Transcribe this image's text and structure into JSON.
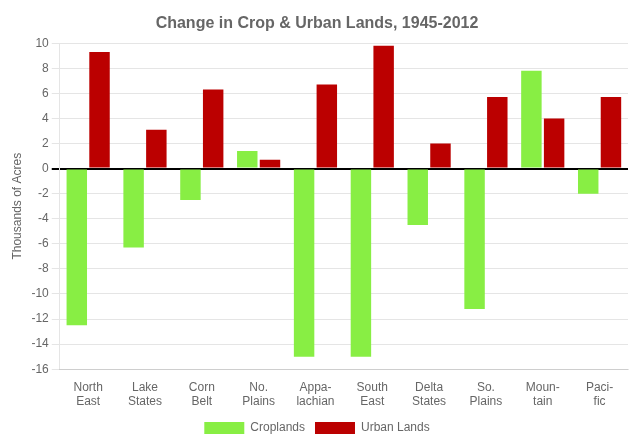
{
  "chart_data": {
    "type": "bar",
    "title": "Change in Crop & Urban Lands, 1945-2012",
    "ylabel": "Thousands of Acres",
    "categories": [
      "North\nEast",
      "Lake\nStates",
      "Corn\nBelt",
      "No.\nPlains",
      "Appa-\nlachian",
      "South\nEast",
      "Delta\nStates",
      "So.\nPlains",
      "Moun-\ntain",
      "Paci-\nfic"
    ],
    "series": [
      {
        "name": "Croplands",
        "color": "#88EE44",
        "values": [
          -12.5,
          -6.3,
          -2.5,
          1.4,
          -15.0,
          -15.0,
          -4.5,
          -11.2,
          7.8,
          -2.0
        ]
      },
      {
        "name": "Urban Lands",
        "color": "#BB0000",
        "values": [
          9.3,
          3.1,
          6.3,
          0.7,
          6.7,
          9.8,
          2.0,
          5.7,
          4.0,
          5.7
        ]
      }
    ],
    "ylim": [
      -16,
      10
    ],
    "yticks": [
      -16,
      -14,
      -12,
      -10,
      -8,
      -6,
      -4,
      -2,
      0,
      2,
      4,
      6,
      8,
      10
    ],
    "grid": true,
    "legend": "bottom"
  }
}
